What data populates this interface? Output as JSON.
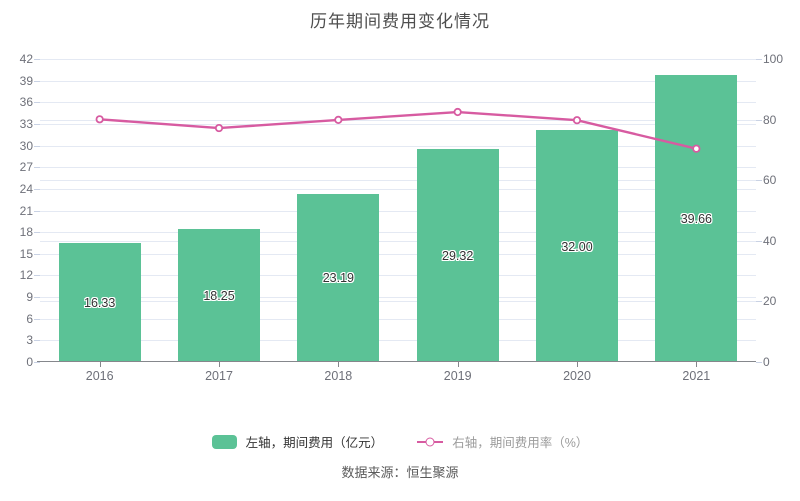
{
  "title": "历年期间费用变化情况",
  "source": "数据来源：恒生聚源",
  "legend": {
    "bar_label": "左轴，期间费用（亿元）",
    "line_label": "右轴，期间费用率（%）"
  },
  "colors": {
    "bar": "#5bc296",
    "line": "#d75ba1",
    "marker_fill": "#ffffff",
    "grid": "#e4e9f3",
    "axis_line": "#85878c",
    "axis_label": "#6e7079",
    "bar_label_text": "#333333",
    "title_text": "#4e4e4e"
  },
  "chart_data": {
    "type": "bar",
    "categories": [
      "2016",
      "2017",
      "2018",
      "2019",
      "2020",
      "2021"
    ],
    "series": [
      {
        "name": "期间费用（亿元）",
        "type": "bar",
        "axis": "left",
        "values": [
          16.33,
          18.25,
          23.19,
          29.32,
          32.0,
          39.66
        ],
        "labels": [
          "16.33",
          "18.25",
          "23.19",
          "29.32",
          "32.00",
          "39.66"
        ]
      },
      {
        "name": "期间费用率（%）",
        "type": "line",
        "axis": "right",
        "values": [
          80.1,
          77.2,
          79.9,
          82.5,
          79.8,
          70.4
        ],
        "values_note": "estimated from line position; no data labels shown"
      }
    ],
    "left_axis": {
      "min": 0,
      "max": 42,
      "step": 3
    },
    "right_axis": {
      "min": 0,
      "max": 100,
      "step": 20
    },
    "grid": true,
    "legend_position": "bottom"
  }
}
